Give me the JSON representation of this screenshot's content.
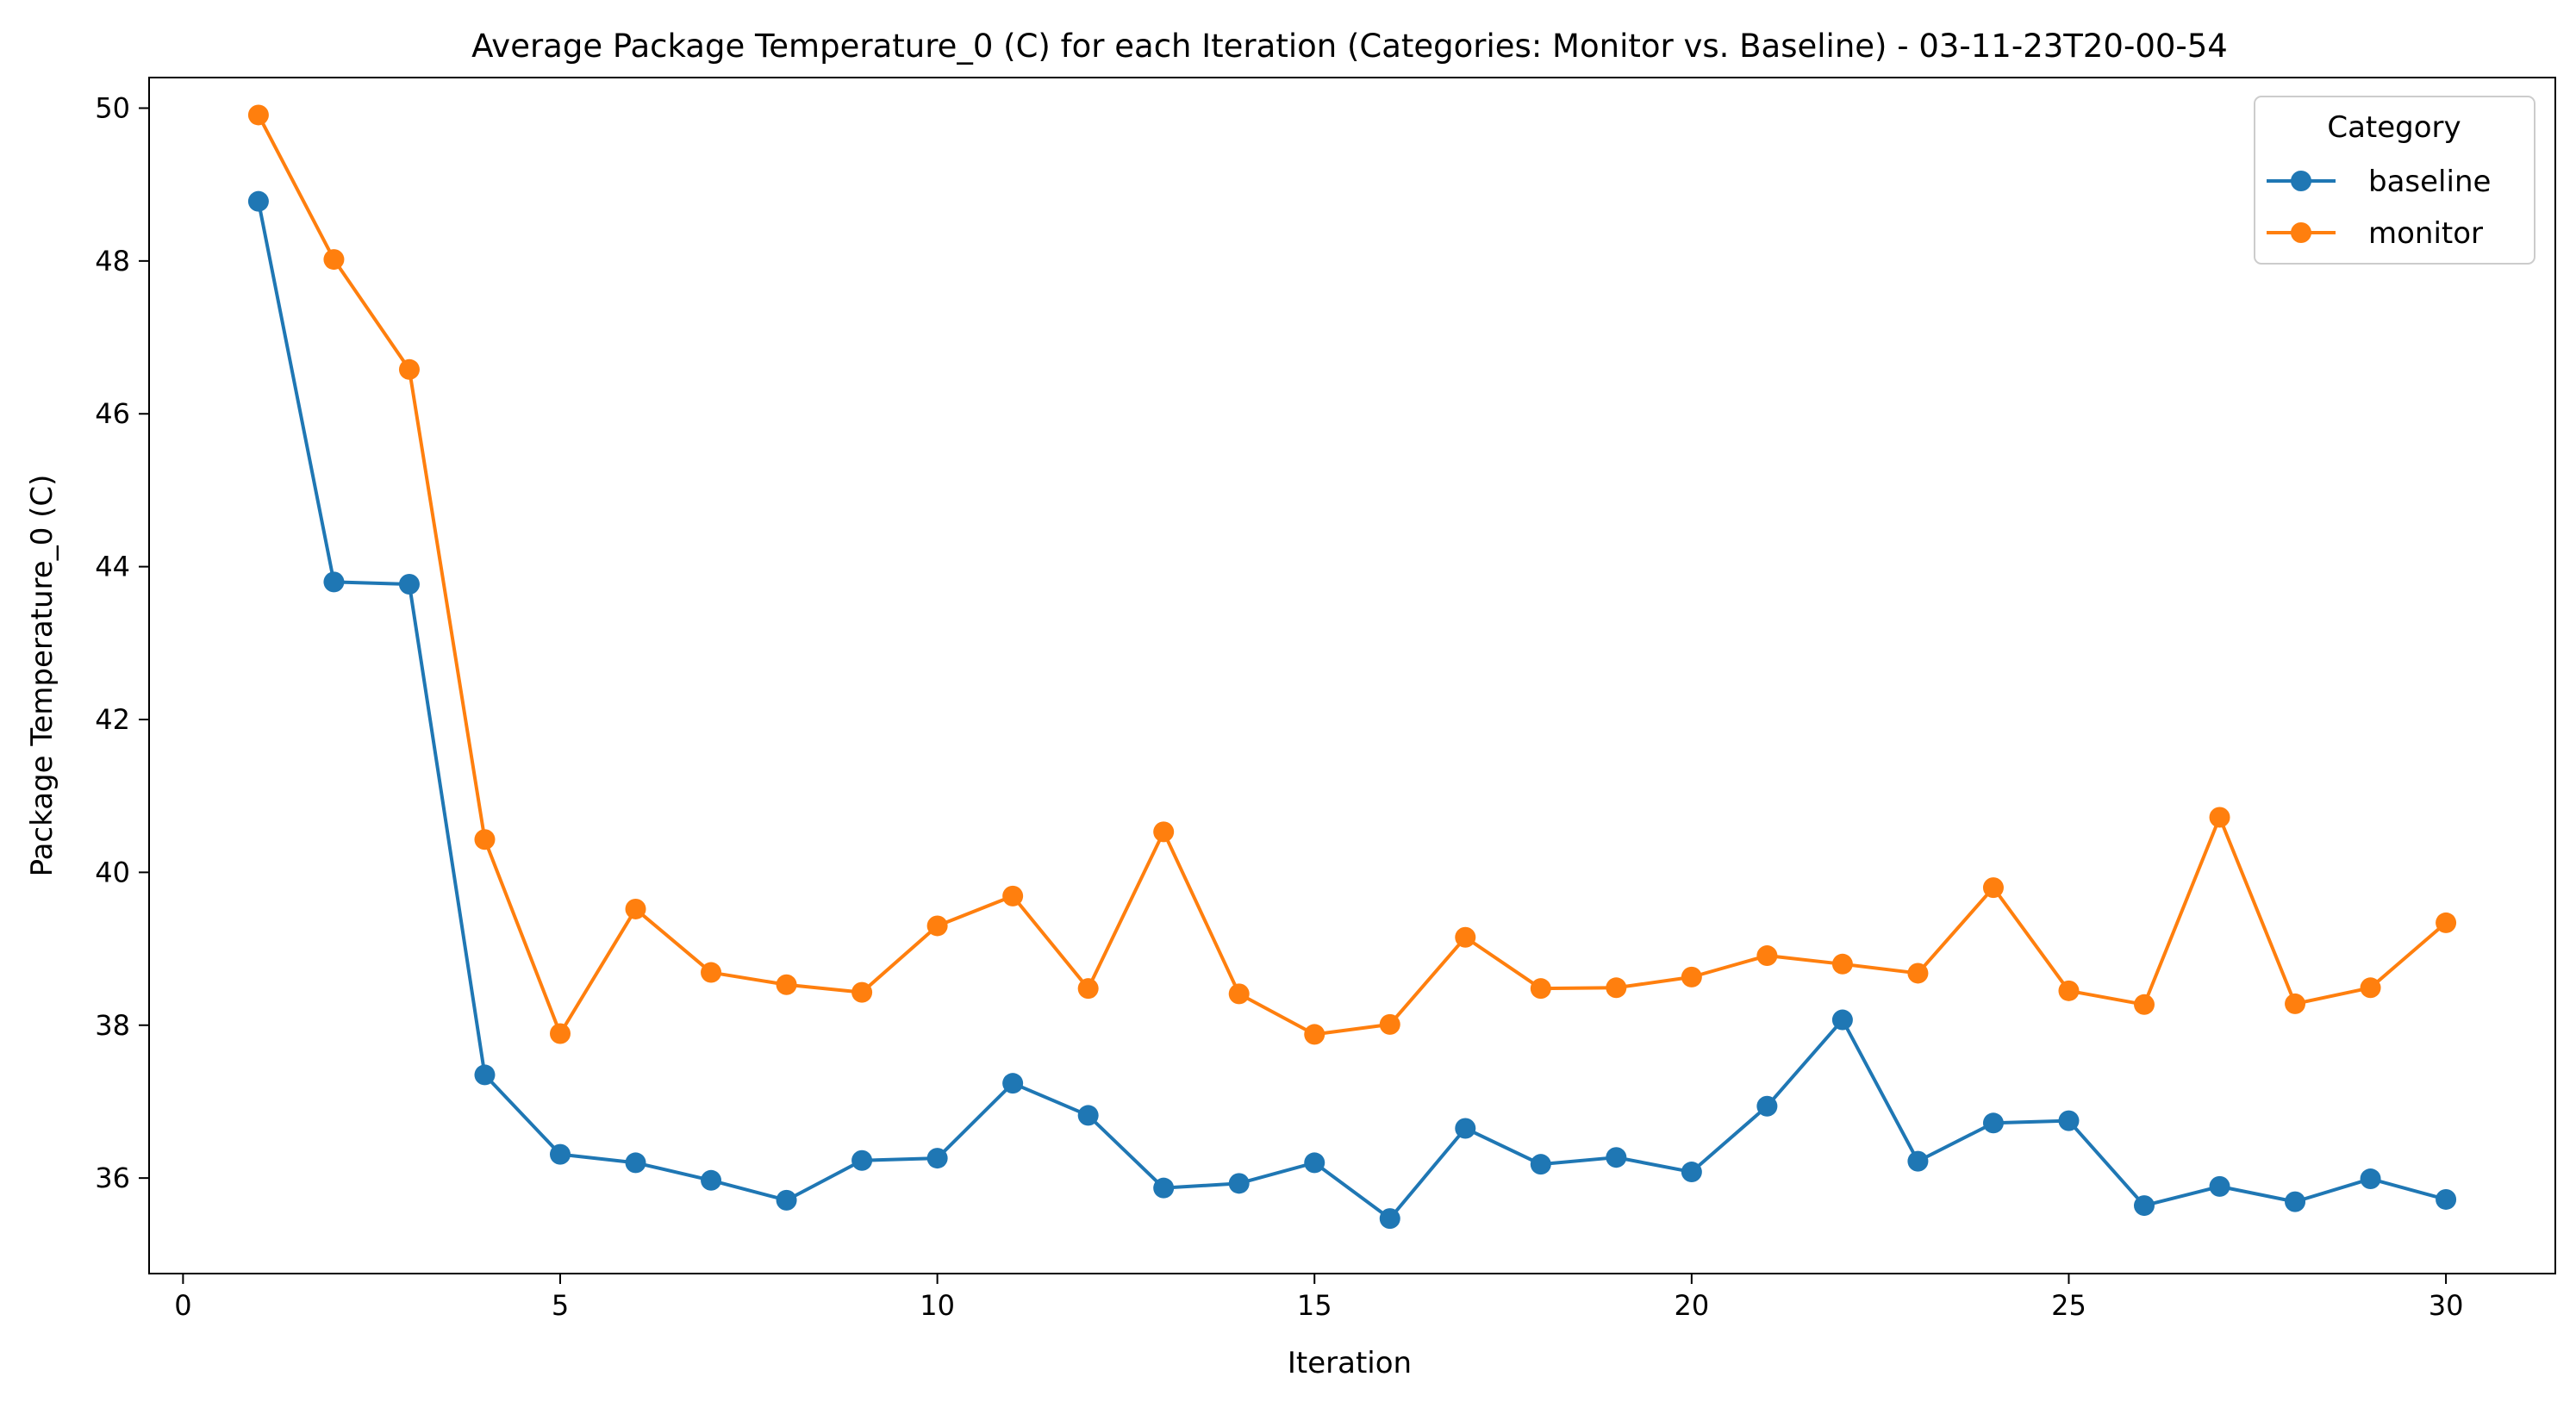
{
  "chart_data": {
    "type": "line",
    "title": "Average Package Temperature_0 (C) for each Iteration (Categories: Monitor vs. Baseline) - 03-11-23T20-00-54",
    "xlabel": "Iteration",
    "ylabel": "Package Temperature_0 (C)",
    "xlim": [
      -0.45,
      31.45
    ],
    "ylim": [
      34.75,
      50.4
    ],
    "xticks": [
      0,
      5,
      10,
      15,
      20,
      25,
      30
    ],
    "yticks": [
      36,
      38,
      40,
      42,
      44,
      46,
      48,
      50
    ],
    "grid": false,
    "legend": {
      "title": "Category",
      "position": "top-right"
    },
    "x": [
      1,
      2,
      3,
      4,
      5,
      6,
      7,
      8,
      9,
      10,
      11,
      12,
      13,
      14,
      15,
      16,
      17,
      18,
      19,
      20,
      21,
      22,
      23,
      24,
      25,
      26,
      27,
      28,
      29,
      30
    ],
    "series": [
      {
        "name": "baseline",
        "color": "#1f77b4",
        "values": [
          48.78,
          43.8,
          43.77,
          37.35,
          36.31,
          36.2,
          35.97,
          35.71,
          36.23,
          36.26,
          37.24,
          36.82,
          35.87,
          35.93,
          36.2,
          35.47,
          36.65,
          36.18,
          36.27,
          36.08,
          36.94,
          38.07,
          36.22,
          36.72,
          36.75,
          35.64,
          35.89,
          35.69,
          35.99,
          35.72
        ]
      },
      {
        "name": "monitor",
        "color": "#ff7f0e",
        "values": [
          49.91,
          48.02,
          46.58,
          40.43,
          37.89,
          39.52,
          38.69,
          38.53,
          38.43,
          39.3,
          39.69,
          38.48,
          40.53,
          38.41,
          37.88,
          38.01,
          39.15,
          38.48,
          38.49,
          38.63,
          38.91,
          38.8,
          38.68,
          39.8,
          38.45,
          38.27,
          40.72,
          38.28,
          38.49,
          39.34
        ]
      }
    ]
  }
}
